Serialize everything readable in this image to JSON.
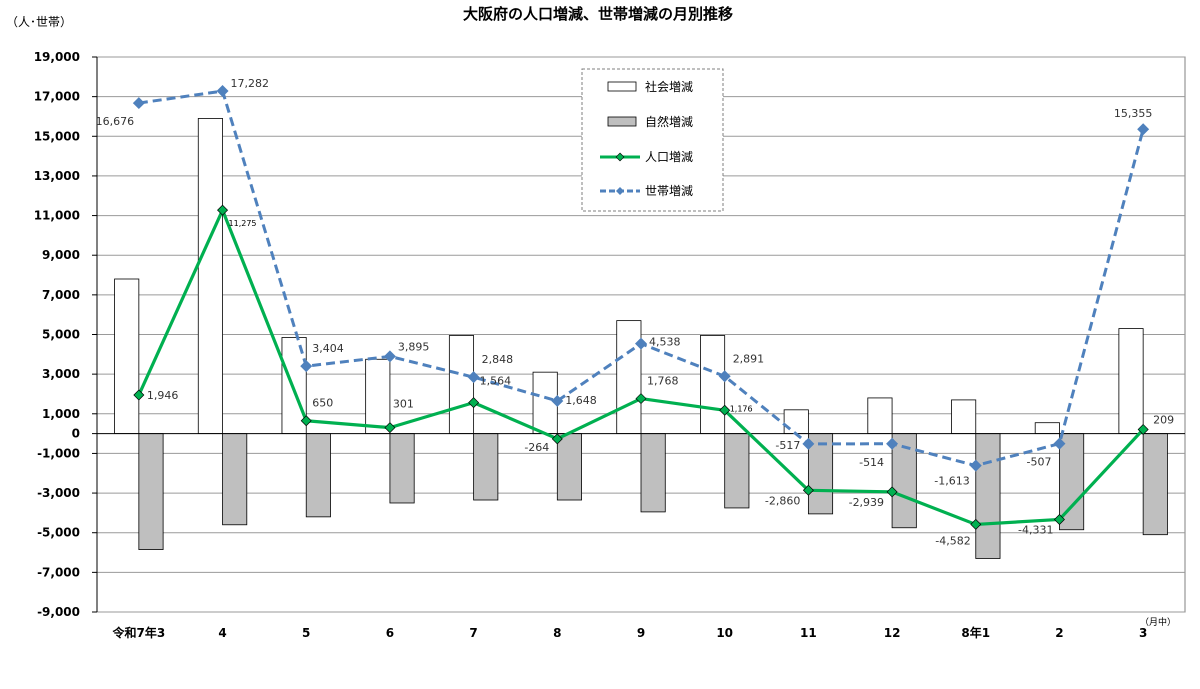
{
  "chart_data": {
    "type": "bar",
    "title": "大阪府の人口増減、世帯増減の月別推移",
    "unit_label": "（人･世帯）",
    "x_end_note": "（月中）",
    "categories": [
      "令和7年3",
      "4",
      "5",
      "6",
      "7",
      "8",
      "9",
      "10",
      "11",
      "12",
      "8年1",
      "2",
      "3"
    ],
    "ylim": [
      -9000,
      19000
    ],
    "yticks": [
      19000,
      17000,
      15000,
      13000,
      11000,
      9000,
      7000,
      5000,
      3000,
      1000,
      0,
      -1000,
      -3000,
      -5000,
      -7000,
      -9000
    ],
    "ytick_labels": [
      "19,000",
      "17,000",
      "15,000",
      "13,000",
      "11,000",
      "9,000",
      "7,000",
      "5,000",
      "3,000",
      "1,000",
      "0",
      "-1,000",
      "-3,000",
      "-5,000",
      "-7,000",
      "-9,000"
    ],
    "grid": true,
    "legend_position": "top-center",
    "bar_series": [
      {
        "name": "社会増減",
        "color": "#ffffff",
        "stroke": "#000000",
        "values": [
          7800,
          15900,
          4850,
          3750,
          4950,
          3100,
          5700,
          4950,
          1200,
          1800,
          1700,
          550,
          5300
        ]
      },
      {
        "name": "自然増減",
        "color": "#bfbfbf",
        "stroke": "#000000",
        "values": [
          -5850,
          -4600,
          -4200,
          -3500,
          -3350,
          -3350,
          -3950,
          -3750,
          -4050,
          -4750,
          -6300,
          -4850,
          -5100
        ]
      }
    ],
    "line_series": [
      {
        "name": "人口増減",
        "color": "#00b050",
        "dashed": false,
        "values": [
          1946,
          11275,
          650,
          301,
          1564,
          -264,
          1768,
          1176,
          -2860,
          -2939,
          -4582,
          -4331,
          209
        ],
        "labels": [
          "1,946",
          "11,275",
          "650",
          "301",
          "1,564",
          "-264",
          "1,768",
          "1,176",
          "-2,860",
          "-2,939",
          "-4,582",
          "-4,331",
          "209"
        ]
      },
      {
        "name": "世帯増減",
        "color": "#4f81bd",
        "dashed": true,
        "values": [
          16676,
          17282,
          3404,
          3895,
          2848,
          1648,
          4538,
          2891,
          -517,
          -514,
          -1613,
          -507,
          15355
        ],
        "labels": [
          "16,676",
          "17,282",
          "3,404",
          "3,895",
          "2,848",
          "1,648",
          "4,538",
          "2,891",
          "-517",
          "-514",
          "-1,613",
          "-507",
          "15,355"
        ]
      }
    ]
  }
}
